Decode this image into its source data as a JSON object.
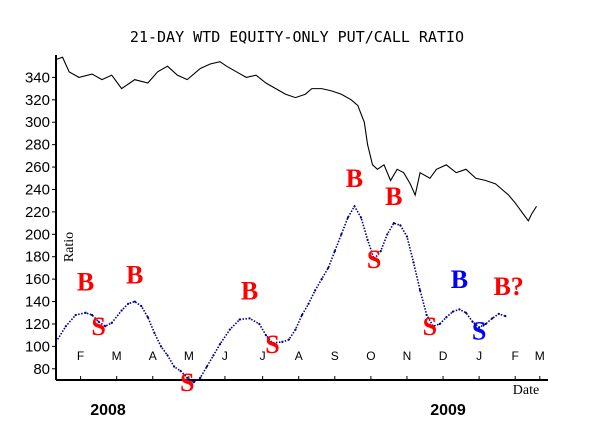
{
  "chart_data": {
    "type": "line",
    "title": "21-DAY WTD EQUITY-ONLY PUT/CALL RATIO",
    "ylabel": "Ratio",
    "xlabel": "Date",
    "ylim": [
      70,
      360
    ],
    "yticks": [
      80,
      100,
      120,
      140,
      160,
      180,
      200,
      220,
      240,
      260,
      280,
      300,
      320,
      340
    ],
    "x_month_labels": [
      "F",
      "M",
      "A",
      "M",
      "J",
      "J",
      "A",
      "S",
      "O",
      "N",
      "D",
      "J",
      "F",
      "M"
    ],
    "years": [
      "2008",
      "2009"
    ],
    "grid": false,
    "colors": {
      "buy": "#ff0000",
      "blue_signal": "#0000ff",
      "series": "#000000",
      "ratio": "#00008b"
    },
    "series": [
      {
        "style": "line",
        "points": [
          [
            0,
            356
          ],
          [
            4,
            358
          ],
          [
            8,
            345
          ],
          [
            14,
            340
          ],
          [
            22,
            343
          ],
          [
            28,
            338
          ],
          [
            34,
            342
          ],
          [
            40,
            330
          ],
          [
            48,
            338
          ],
          [
            56,
            335
          ],
          [
            62,
            345
          ],
          [
            68,
            350
          ],
          [
            74,
            342
          ],
          [
            80,
            338
          ],
          [
            88,
            348
          ],
          [
            94,
            352
          ],
          [
            100,
            354
          ],
          [
            104,
            350
          ],
          [
            110,
            345
          ],
          [
            116,
            340
          ],
          [
            122,
            342
          ],
          [
            128,
            335
          ],
          [
            134,
            330
          ],
          [
            140,
            325
          ],
          [
            146,
            322
          ],
          [
            152,
            325
          ],
          [
            156,
            330
          ],
          [
            162,
            330
          ],
          [
            168,
            328
          ],
          [
            174,
            325
          ],
          [
            180,
            320
          ],
          [
            184,
            315
          ],
          [
            188,
            300
          ],
          [
            190,
            280
          ],
          [
            193,
            262
          ],
          [
            196,
            258
          ],
          [
            200,
            262
          ],
          [
            204,
            248
          ],
          [
            208,
            258
          ],
          [
            212,
            255
          ],
          [
            216,
            245
          ],
          [
            219,
            235
          ],
          [
            222,
            255
          ],
          [
            228,
            250
          ],
          [
            232,
            258
          ],
          [
            238,
            262
          ],
          [
            244,
            255
          ],
          [
            250,
            258
          ],
          [
            256,
            250
          ],
          [
            262,
            248
          ],
          [
            268,
            245
          ],
          [
            272,
            240
          ],
          [
            276,
            235
          ],
          [
            280,
            228
          ],
          [
            284,
            220
          ],
          [
            288,
            212
          ],
          [
            290,
            218
          ],
          [
            293,
            225
          ]
        ]
      },
      {
        "style": "dotted",
        "points": [
          [
            0,
            104
          ],
          [
            6,
            118
          ],
          [
            12,
            128
          ],
          [
            18,
            130
          ],
          [
            22,
            128
          ],
          [
            26,
            122
          ],
          [
            30,
            118
          ],
          [
            34,
            121
          ],
          [
            40,
            132
          ],
          [
            44,
            138
          ],
          [
            48,
            140
          ],
          [
            52,
            136
          ],
          [
            56,
            126
          ],
          [
            60,
            112
          ],
          [
            64,
            100
          ],
          [
            68,
            92
          ],
          [
            72,
            82
          ],
          [
            76,
            78
          ],
          [
            80,
            72
          ],
          [
            84,
            68
          ],
          [
            88,
            72
          ],
          [
            92,
            82
          ],
          [
            96,
            92
          ],
          [
            100,
            102
          ],
          [
            106,
            115
          ],
          [
            112,
            124
          ],
          [
            118,
            125
          ],
          [
            124,
            120
          ],
          [
            128,
            110
          ],
          [
            132,
            103
          ],
          [
            138,
            104
          ],
          [
            142,
            106
          ],
          [
            146,
            115
          ],
          [
            150,
            128
          ],
          [
            154,
            138
          ],
          [
            158,
            150
          ],
          [
            162,
            160
          ],
          [
            166,
            170
          ],
          [
            170,
            185
          ],
          [
            174,
            200
          ],
          [
            178,
            215
          ],
          [
            182,
            225
          ],
          [
            186,
            215
          ],
          [
            190,
            195
          ],
          [
            194,
            178
          ],
          [
            198,
            185
          ],
          [
            202,
            200
          ],
          [
            206,
            210
          ],
          [
            210,
            208
          ],
          [
            214,
            198
          ],
          [
            218,
            175
          ],
          [
            222,
            150
          ],
          [
            226,
            128
          ],
          [
            230,
            118
          ],
          [
            234,
            120
          ],
          [
            238,
            126
          ],
          [
            242,
            131
          ],
          [
            246,
            133
          ],
          [
            250,
            130
          ],
          [
            254,
            122
          ],
          [
            258,
            117
          ],
          [
            262,
            120
          ],
          [
            266,
            125
          ],
          [
            270,
            129
          ],
          [
            274,
            127
          ]
        ]
      }
    ],
    "annotations": [
      {
        "text": "B",
        "x": 18,
        "y": 150,
        "color": "red"
      },
      {
        "text": "S",
        "x": 26,
        "y": 110,
        "color": "red"
      },
      {
        "text": "B",
        "x": 48,
        "y": 156,
        "color": "red"
      },
      {
        "text": "S",
        "x": 80,
        "y": 60,
        "color": "red"
      },
      {
        "text": "B",
        "x": 118,
        "y": 142,
        "color": "red"
      },
      {
        "text": "S",
        "x": 132,
        "y": 94,
        "color": "red"
      },
      {
        "text": "B",
        "x": 182,
        "y": 242,
        "color": "red"
      },
      {
        "text": "S",
        "x": 194,
        "y": 170,
        "color": "red"
      },
      {
        "text": "B",
        "x": 206,
        "y": 226,
        "color": "red"
      },
      {
        "text": "S",
        "x": 228,
        "y": 110,
        "color": "red"
      },
      {
        "text": "B",
        "x": 246,
        "y": 152,
        "color": "blue"
      },
      {
        "text": "S",
        "x": 258,
        "y": 106,
        "color": "blue"
      },
      {
        "text": "B?",
        "x": 276,
        "y": 146,
        "color": "red"
      }
    ]
  }
}
